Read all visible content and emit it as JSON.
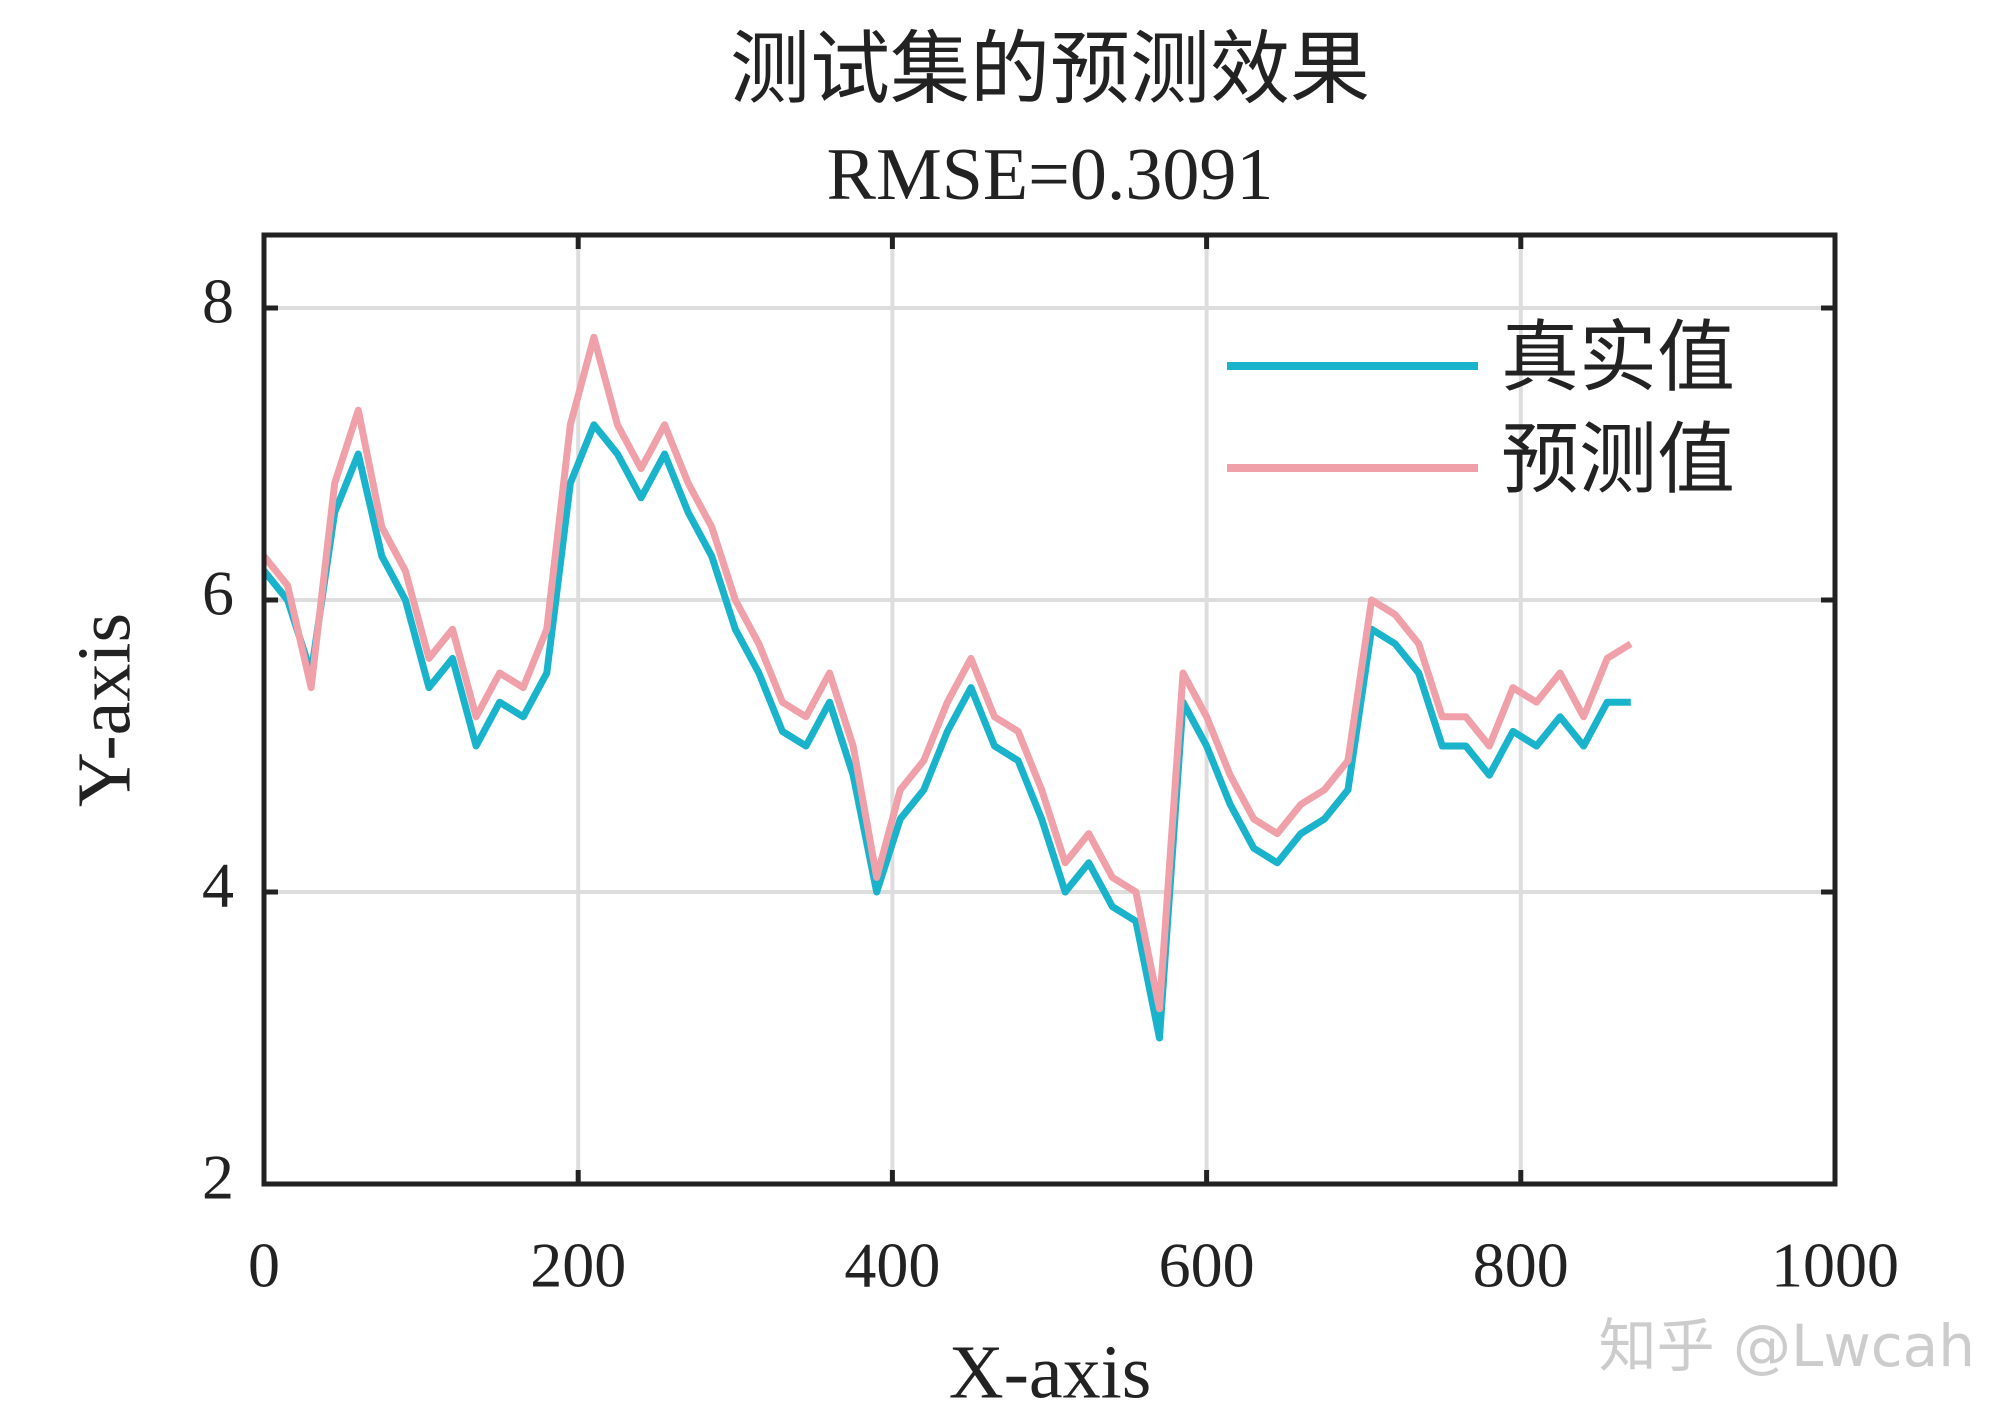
{
  "chart_data": {
    "type": "line",
    "title": "测试集的预测效果",
    "subtitle": "RMSE=0.3091",
    "x_label": "X-axis",
    "y_label": "Y-axis",
    "watermark": "知乎 @Lwcah",
    "x": [
      0,
      15,
      30,
      45,
      60,
      75,
      90,
      105,
      120,
      135,
      150,
      165,
      180,
      195,
      210,
      225,
      240,
      255,
      270,
      285,
      300,
      315,
      330,
      345,
      360,
      375,
      390,
      405,
      420,
      435,
      450,
      465,
      480,
      495,
      510,
      525,
      540,
      555,
      570,
      585,
      600,
      615,
      630,
      645,
      660,
      675,
      690,
      705,
      720,
      735,
      750,
      765,
      780,
      795,
      810,
      825,
      840,
      855,
      870
    ],
    "series": [
      {
        "name": "真实值",
        "color": "#1ab3cc",
        "values": [
          6.2,
          6.0,
          5.5,
          6.6,
          7.0,
          6.3,
          6.0,
          5.4,
          5.6,
          5.0,
          5.3,
          5.2,
          5.5,
          6.8,
          7.2,
          7.0,
          6.7,
          7.0,
          6.6,
          6.3,
          5.8,
          5.5,
          5.1,
          5.0,
          5.3,
          4.8,
          4.0,
          4.5,
          4.7,
          5.1,
          5.4,
          5.0,
          4.9,
          4.5,
          4.0,
          4.2,
          3.9,
          3.8,
          3.0,
          5.3,
          5.0,
          4.6,
          4.3,
          4.2,
          4.4,
          4.5,
          4.7,
          5.8,
          5.7,
          5.5,
          5.0,
          5.0,
          4.8,
          5.1,
          5.0,
          5.2,
          5.0,
          5.3,
          5.3
        ]
      },
      {
        "name": "预测值",
        "color": "#f0a0a8",
        "values": [
          6.3,
          6.1,
          5.4,
          6.8,
          7.3,
          6.5,
          6.2,
          5.6,
          5.8,
          5.2,
          5.5,
          5.4,
          5.8,
          7.2,
          7.8,
          7.2,
          6.9,
          7.2,
          6.8,
          6.5,
          6.0,
          5.7,
          5.3,
          5.2,
          5.5,
          5.0,
          4.1,
          4.7,
          4.9,
          5.3,
          5.6,
          5.2,
          5.1,
          4.7,
          4.2,
          4.4,
          4.1,
          4.0,
          3.2,
          5.5,
          5.2,
          4.8,
          4.5,
          4.4,
          4.6,
          4.7,
          4.9,
          6.0,
          5.9,
          5.7,
          5.2,
          5.2,
          5.0,
          5.4,
          5.3,
          5.5,
          5.2,
          5.6,
          5.7
        ]
      }
    ],
    "xlim": [
      0,
      1000
    ],
    "ylim": [
      2,
      8.5
    ],
    "xticks": [
      0,
      200,
      400,
      600,
      800,
      1000
    ],
    "yticks": [
      2,
      4,
      6,
      8
    ],
    "grid": true,
    "legend": "upper right"
  }
}
